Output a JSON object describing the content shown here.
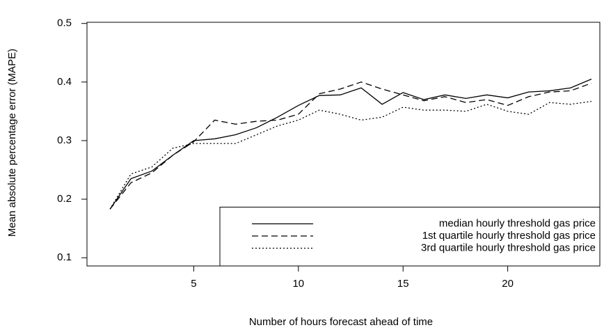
{
  "chart_data": {
    "type": "line",
    "x_label": "Number of hours forecast ahead of time",
    "y_label": "Mean absolute percentage error (MAPE)",
    "x": [
      1,
      2,
      3,
      4,
      5,
      6,
      7,
      8,
      9,
      10,
      11,
      12,
      13,
      14,
      15,
      16,
      17,
      18,
      19,
      20,
      21,
      22,
      23,
      24
    ],
    "series": [
      {
        "name": "median hourly threshold gas price",
        "color": "#000000",
        "dash": "solid",
        "values": [
          0.183,
          0.235,
          0.248,
          0.275,
          0.3,
          0.303,
          0.31,
          0.322,
          0.34,
          0.36,
          0.377,
          0.378,
          0.39,
          0.362,
          0.382,
          0.37,
          0.378,
          0.372,
          0.378,
          0.373,
          0.383,
          0.385,
          0.39,
          0.405
        ]
      },
      {
        "name": "1st quartile hourly threshold gas price",
        "color": "#000000",
        "dash": "dashed",
        "values": [
          0.183,
          0.228,
          0.245,
          0.275,
          0.298,
          0.335,
          0.328,
          0.333,
          0.335,
          0.345,
          0.38,
          0.388,
          0.4,
          0.388,
          0.378,
          0.368,
          0.375,
          0.365,
          0.37,
          0.36,
          0.375,
          0.383,
          0.385,
          0.398
        ]
      },
      {
        "name": "3rd quartile hourly threshold gas price",
        "color": "#000000",
        "dash": "dotted",
        "values": [
          0.183,
          0.243,
          0.255,
          0.287,
          0.295,
          0.295,
          0.295,
          0.31,
          0.325,
          0.335,
          0.352,
          0.345,
          0.335,
          0.34,
          0.357,
          0.352,
          0.352,
          0.35,
          0.362,
          0.35,
          0.345,
          0.365,
          0.362,
          0.367
        ]
      }
    ],
    "xlim": [
      -0.1,
      24.4
    ],
    "xticks": [
      5,
      10,
      15,
      20
    ],
    "ylim": [
      0.086,
      0.502
    ],
    "yticks": [
      0.1,
      0.2,
      0.3,
      0.4,
      0.5
    ],
    "legend": "bottomright"
  }
}
